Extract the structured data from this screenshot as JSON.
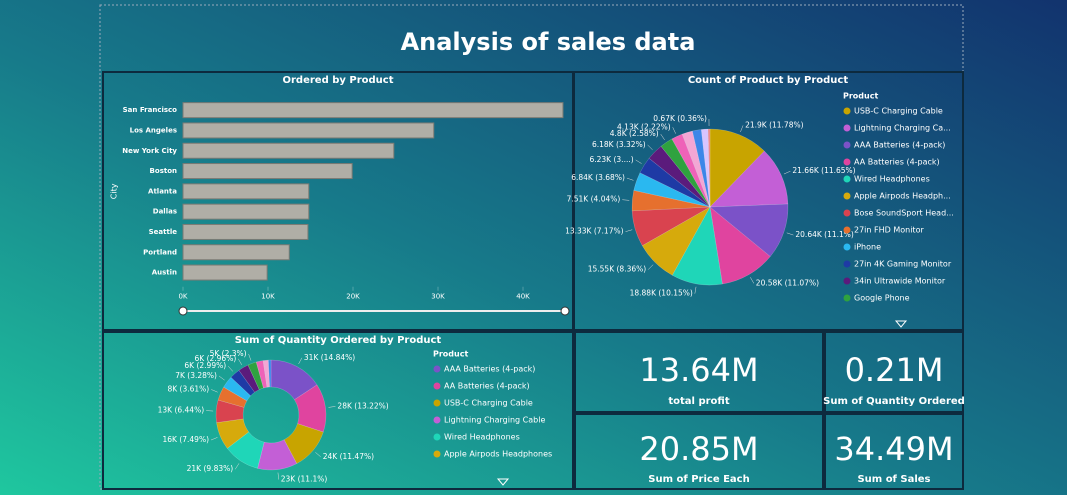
{
  "title": "Analysis of sales data",
  "chart_data": [
    {
      "type": "bar",
      "orientation": "horizontal",
      "title": "Ordered by Product",
      "y_label": "City",
      "categories": [
        "San Francisco",
        "Los Angeles",
        "New York City",
        "Boston",
        "Atlanta",
        "Dallas",
        "Seattle",
        "Portland",
        "Austin"
      ],
      "values": [
        44700,
        29500,
        24800,
        19900,
        14800,
        14800,
        14700,
        12500,
        9900
      ],
      "color": "#b0aea6",
      "xlim": [
        0,
        45000
      ],
      "xticks": [
        {
          "value": 0,
          "label": "0K"
        },
        {
          "value": 10000,
          "label": "10K"
        },
        {
          "value": 20000,
          "label": "20K"
        },
        {
          "value": 30000,
          "label": "30K"
        },
        {
          "value": 40000,
          "label": "40K"
        }
      ]
    },
    {
      "type": "pie",
      "title": "Count of Product by Product",
      "legend_title": "Product",
      "legend": "right",
      "categories": [
        "USB-C Charging Cable",
        "Lightning Charging Ca...",
        "AAA Batteries (4-pack)",
        "AA Batteries (4-pack)",
        "Wired Headphones",
        "Apple Airpods Headph...",
        "Bose SoundSport Head...",
        "27in FHD Monitor",
        "iPhone",
        "27in 4K Gaming Monitor",
        "34in Ultrawide Monitor",
        "Google Phone",
        null,
        null,
        null,
        null,
        null
      ],
      "values": [
        21900,
        21660,
        20640,
        20580,
        18880,
        15550,
        13330,
        7510,
        6840,
        6230,
        6180,
        4800,
        4130,
        3900,
        3300,
        2500,
        670
      ],
      "value_labels": [
        "21.9K (11.78%)",
        "21.66K (11.65%)",
        "20.64K (11.1%)",
        "20.58K (11.07%)",
        "18.88K (10.15%)",
        "15.55K (8.36%)",
        "13.33K (7.17%)",
        "7.51K (4.04%)",
        "6.84K (3.68%)",
        "6.23K (3....)",
        "6.18K (3.32%)",
        "4.8K (2.58%)",
        "4.13K (2.22%)",
        null,
        null,
        null,
        "0.67K (0.36%)"
      ],
      "colors": [
        "#c8a400",
        "#c35fd6",
        "#7b52c8",
        "#e0449f",
        "#1fd6b8",
        "#d6aa0c",
        "#d9434f",
        "#e6702e",
        "#2ab8f0",
        "#1e3aa5",
        "#5b1b7c",
        "#2fa23f",
        "#ee62b8",
        "#f3a6d4",
        "#3d86e8",
        "#d8c4ff",
        "#f08080"
      ]
    },
    {
      "type": "donut",
      "title": "Sum of Quantity Ordered by Product",
      "legend_title": "Product",
      "legend": "right",
      "categories": [
        "AAA Batteries (4-pack)",
        "AA Batteries (4-pack)",
        "USB-C Charging Cable",
        "Lightning Charging Cable",
        "Wired Headphones",
        "Apple Airpods Headphones",
        null,
        null,
        null,
        null,
        null,
        null,
        null,
        null,
        null
      ],
      "values": [
        31000,
        28000,
        24000,
        23000,
        21000,
        16000,
        13000,
        8000,
        7000,
        6000,
        6000,
        5000,
        4000,
        3000,
        1500
      ],
      "value_labels": [
        "31K (14.84%)",
        "28K (13.22%)",
        "24K (11.47%)",
        "23K (11.1%)",
        "21K (9.83%)",
        "16K (7.49%)",
        "13K (6.44%)",
        "8K (3.61%)",
        "7K (3.28%)",
        "6K (2.99%)",
        "6K (2.96%)",
        "5K (2.3%)",
        null,
        null,
        null
      ],
      "colors": [
        "#7b52c8",
        "#e0449f",
        "#c8a400",
        "#c35fd6",
        "#1fd6b8",
        "#d6aa0c",
        "#d9434f",
        "#e6702e",
        "#2ab8f0",
        "#1e3aa5",
        "#5b1b7c",
        "#2fa23f",
        "#ee62b8",
        "#f3a6d4",
        "#3d86e8"
      ]
    }
  ],
  "kpis": [
    {
      "value": "13.64M",
      "label": "total profit"
    },
    {
      "value": "0.21M",
      "label": "Sum of Quantity Ordered"
    },
    {
      "value": "20.85M",
      "label": "Sum of Price Each"
    },
    {
      "value": "34.49M",
      "label": "Sum of Sales"
    }
  ]
}
